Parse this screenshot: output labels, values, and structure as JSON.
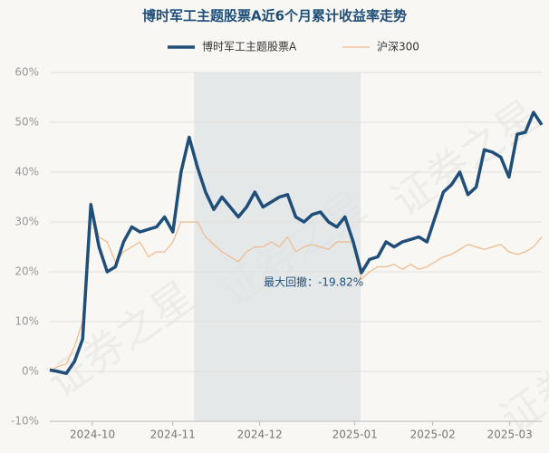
{
  "chart_data": {
    "type": "line",
    "title": "博时军工主题股票A近6个月累计收益率走势",
    "watermark": "证券之星",
    "xlim": [
      0,
      60
    ],
    "xticks": [
      {
        "value": 5.2,
        "label": "2024-10"
      },
      {
        "value": 15,
        "label": "2024-11"
      },
      {
        "value": 25.6,
        "label": "2024-12"
      },
      {
        "value": 37.2,
        "label": "2025-01"
      },
      {
        "value": 46.7,
        "label": "2025-02"
      },
      {
        "value": 56.1,
        "label": "2025-03"
      }
    ],
    "ylim": [
      -10,
      60
    ],
    "yticks": [
      {
        "value": -10,
        "label": "-10%"
      },
      {
        "value": 0,
        "label": "0%"
      },
      {
        "value": 10,
        "label": "10%"
      },
      {
        "value": 20,
        "label": "20%"
      },
      {
        "value": 30,
        "label": "30%"
      },
      {
        "value": 40,
        "label": "40%"
      },
      {
        "value": 50,
        "label": "50%"
      },
      {
        "value": 60,
        "label": "60%"
      }
    ],
    "grid": true,
    "legend": "top",
    "drawdown": {
      "start": 17.6,
      "end": 37.9,
      "label": "最大回撤：-19.82%",
      "color": "#dfe3e6"
    },
    "series": [
      {
        "name": "博时军工主题股票A",
        "color": "#1f4e79",
        "width": 3.5,
        "values": [
          0.3,
          0,
          -0.4,
          2,
          6.5,
          33.5,
          25,
          20,
          21,
          26,
          29,
          28,
          28.5,
          29,
          31,
          28,
          40,
          47,
          41,
          36,
          32.5,
          35,
          33,
          31,
          33,
          36,
          33,
          34,
          35,
          35.5,
          31,
          30,
          31.5,
          32,
          30,
          29,
          31,
          26,
          19.8,
          22.5,
          23,
          26,
          25,
          26,
          26.5,
          27,
          26,
          31,
          36,
          37.5,
          40,
          35.5,
          37,
          44.5,
          44,
          43,
          39,
          47.6,
          48,
          52,
          49.5
        ]
      },
      {
        "name": "沪深300",
        "color": "#f0b98a",
        "width": 1.2,
        "values": [
          0,
          1,
          1.5,
          5,
          10,
          34,
          27,
          26,
          22,
          24,
          25,
          26,
          23,
          24,
          24,
          26,
          30,
          30,
          30,
          27,
          25.5,
          24,
          23,
          22,
          24,
          25,
          25,
          26,
          25,
          27,
          24,
          25,
          25.5,
          25,
          24.5,
          26,
          26,
          26,
          18.5,
          20,
          21,
          21,
          21.5,
          20.5,
          21.5,
          20.5,
          21,
          22,
          23,
          23.5,
          24.5,
          25.5,
          25,
          24.5,
          25,
          25.5,
          24,
          23.5,
          24,
          25,
          27
        ]
      }
    ]
  }
}
